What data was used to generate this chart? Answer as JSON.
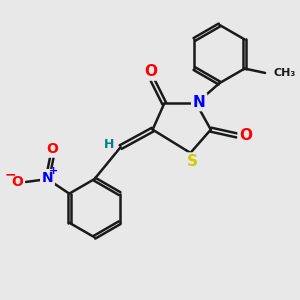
{
  "background_color": "#e8e8e8",
  "bond_color": "#1a1a1a",
  "bond_width": 1.8,
  "atom_colors": {
    "O": "#ff0000",
    "N": "#0000ff",
    "S": "#cccc00",
    "H": "#008080",
    "C": "#1a1a1a"
  },
  "font_size": 10,
  "fig_size": [
    3.0,
    3.0
  ],
  "dpi": 100
}
